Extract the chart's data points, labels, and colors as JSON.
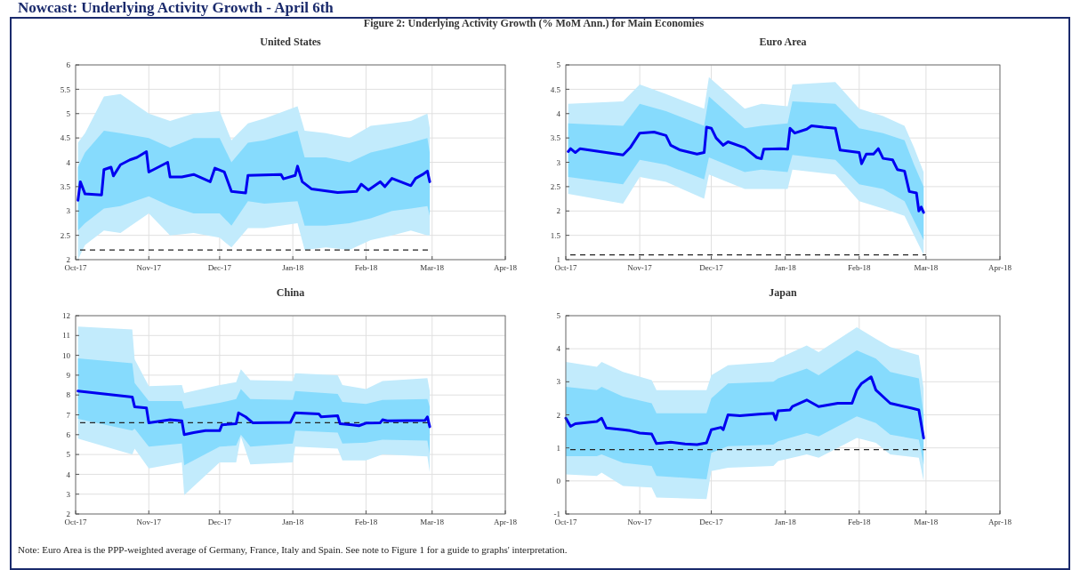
{
  "chart_data": [
    {
      "type": "other",
      "title": "Figure 2: Underlying Activity Growth (% MoM Ann.) for Main Economies",
      "annotations": [
        "Nowcast: Underlying Activity Growth - April 6th",
        "Note: Euro Area is the PPP-weighted average of Germany, France, Italy and Spain. See note to Figure 1 for a guide to graphs' interpretation."
      ]
    },
    {
      "type": "line",
      "title": "United States",
      "xlim": [
        "2017-10-01",
        "2018-04-01"
      ],
      "xticks": [
        {
          "value": "2017-10-01",
          "label": "Oct-17"
        },
        {
          "value": "2017-11-01",
          "label": "Nov-17"
        },
        {
          "value": "2017-12-01",
          "label": "Dec-17"
        },
        {
          "value": "2018-01-01",
          "label": "Jan-18"
        },
        {
          "value": "2018-02-01",
          "label": "Feb-18"
        },
        {
          "value": "2018-03-01",
          "label": "Mar-18"
        },
        {
          "value": "2018-04-01",
          "label": "Apr-18"
        }
      ],
      "ylim": [
        2,
        6
      ],
      "yticks": [
        2,
        2.5,
        3,
        3.5,
        4,
        4.5,
        5,
        5.5,
        6
      ],
      "grid": true,
      "ref_lines": [
        {
          "axis": "y",
          "value": 2.2,
          "color": "#222222",
          "line_style": "dashed"
        }
      ],
      "series": [
        {
          "type": "line",
          "color": "#c2ebfc",
          "x": [
            "2017-10-02",
            "2017-10-05",
            "2017-10-13",
            "2017-10-20",
            "2017-11-01",
            "2017-11-10",
            "2017-11-20",
            "2017-12-01",
            "2017-12-06",
            "2017-12-13",
            "2017-12-20",
            "2018-01-03",
            "2018-01-06",
            "2018-01-15",
            "2018-01-25",
            "2018-02-03",
            "2018-02-12",
            "2018-02-20",
            "2018-02-27",
            "2018-02-28"
          ],
          "values": [
            null,
            null,
            null,
            null,
            null,
            null,
            null,
            null,
            null,
            null,
            null,
            null,
            null,
            null,
            null,
            null,
            null,
            null,
            null,
            null
          ],
          "upper": [
            4.4,
            4.6,
            5.35,
            5.4,
            5.0,
            4.85,
            5.0,
            5.05,
            4.45,
            4.8,
            4.9,
            5.15,
            4.65,
            4.6,
            4.5,
            4.75,
            4.8,
            4.85,
            5.0,
            4.7
          ],
          "lower": [
            2.0,
            2.3,
            2.6,
            2.55,
            2.95,
            2.5,
            2.55,
            2.45,
            2.25,
            2.65,
            2.65,
            2.75,
            2.2,
            2.25,
            2.2,
            2.4,
            2.5,
            2.6,
            2.5,
            2.5
          ]
        },
        {
          "type": "line",
          "color": "#86dbfd",
          "x": [
            "2017-10-02",
            "2017-10-05",
            "2017-10-13",
            "2017-10-20",
            "2017-11-01",
            "2017-11-10",
            "2017-11-20",
            "2017-12-01",
            "2017-12-06",
            "2017-12-13",
            "2017-12-20",
            "2018-01-03",
            "2018-01-06",
            "2018-01-15",
            "2018-01-25",
            "2018-02-03",
            "2018-02-12",
            "2018-02-20",
            "2018-02-27",
            "2018-02-28"
          ],
          "values": [
            null,
            null,
            null,
            null,
            null,
            null,
            null,
            null,
            null,
            null,
            null,
            null,
            null,
            null,
            null,
            null,
            null,
            null,
            null,
            null
          ],
          "upper": [
            3.9,
            4.2,
            4.65,
            4.6,
            4.5,
            4.3,
            4.5,
            4.5,
            4.0,
            4.4,
            4.45,
            4.65,
            4.1,
            4.1,
            4.0,
            4.2,
            4.3,
            4.4,
            4.5,
            4.2
          ],
          "lower": [
            2.6,
            2.75,
            3.05,
            3.1,
            3.3,
            3.1,
            2.95,
            2.95,
            2.7,
            3.2,
            3.15,
            3.2,
            2.7,
            2.7,
            2.75,
            2.85,
            3.0,
            3.05,
            3.1,
            2.9
          ]
        },
        {
          "type": "line",
          "color": "#0000f0",
          "x": [
            "2017-10-02",
            "2017-10-03",
            "2017-10-05",
            "2017-10-12",
            "2017-10-13",
            "2017-10-16",
            "2017-10-17",
            "2017-10-20",
            "2017-10-24",
            "2017-10-27",
            "2017-10-31",
            "2017-11-01",
            "2017-11-03",
            "2017-11-09",
            "2017-11-10",
            "2017-11-15",
            "2017-11-20",
            "2017-11-27",
            "2017-11-29",
            "2017-12-03",
            "2017-12-06",
            "2017-12-12",
            "2017-12-13",
            "2017-12-27",
            "2017-12-28",
            "2018-01-02",
            "2018-01-03",
            "2018-01-05",
            "2018-01-09",
            "2018-01-20",
            "2018-01-28",
            "2018-01-30",
            "2018-02-02",
            "2018-02-07",
            "2018-02-09",
            "2018-02-12",
            "2018-02-20",
            "2018-02-22",
            "2018-02-25",
            "2018-02-27",
            "2018-02-28"
          ],
          "values": [
            3.22,
            3.6,
            3.35,
            3.33,
            3.85,
            3.9,
            3.72,
            3.95,
            4.05,
            4.1,
            4.22,
            3.8,
            3.85,
            4.0,
            3.7,
            3.7,
            3.75,
            3.6,
            3.88,
            3.8,
            3.4,
            3.37,
            3.73,
            3.75,
            3.66,
            3.73,
            3.92,
            3.6,
            3.45,
            3.38,
            3.4,
            3.55,
            3.43,
            3.6,
            3.5,
            3.67,
            3.52,
            3.67,
            3.75,
            3.82,
            3.6
          ]
        }
      ]
    },
    {
      "type": "line",
      "title": "Euro Area",
      "xlim": [
        "2017-10-01",
        "2018-04-01"
      ],
      "xticks": [
        {
          "value": "2017-10-01",
          "label": "Oct-17"
        },
        {
          "value": "2017-11-01",
          "label": "Nov-17"
        },
        {
          "value": "2017-12-01",
          "label": "Dec-17"
        },
        {
          "value": "2018-01-01",
          "label": "Jan-18"
        },
        {
          "value": "2018-02-01",
          "label": "Feb-18"
        },
        {
          "value": "2018-03-01",
          "label": "Mar-18"
        },
        {
          "value": "2018-04-01",
          "label": "Apr-18"
        }
      ],
      "ylim": [
        1,
        5
      ],
      "yticks": [
        1,
        1.5,
        2,
        2.5,
        3,
        3.5,
        4,
        4.5,
        5
      ],
      "grid": true,
      "ref_lines": [
        {
          "axis": "y",
          "value": 1.1,
          "color": "#222222",
          "line_style": "dashed"
        }
      ],
      "series": [
        {
          "type": "line",
          "color": "#c2ebfc",
          "x": [
            "2017-10-02",
            "2017-10-25",
            "2017-11-01",
            "2017-11-12",
            "2017-11-28",
            "2017-11-30",
            "2017-12-15",
            "2017-12-22",
            "2018-01-02",
            "2018-01-04",
            "2018-01-22",
            "2018-02-01",
            "2018-02-11",
            "2018-02-20",
            "2018-02-24",
            "2018-02-28"
          ],
          "values": [
            null,
            null,
            null,
            null,
            null,
            null,
            null,
            null,
            null,
            null,
            null,
            null,
            null,
            null,
            null,
            null
          ],
          "upper": [
            4.2,
            4.25,
            4.6,
            4.4,
            4.1,
            4.75,
            4.1,
            4.2,
            4.15,
            4.6,
            4.65,
            4.1,
            3.95,
            3.75,
            3.3,
            2.8
          ],
          "lower": [
            2.35,
            2.15,
            2.7,
            2.6,
            2.25,
            2.75,
            2.45,
            2.45,
            2.45,
            2.85,
            2.75,
            2.2,
            2.05,
            1.9,
            1.5,
            1.1
          ]
        },
        {
          "type": "line",
          "color": "#86dbfd",
          "x": [
            "2017-10-02",
            "2017-10-25",
            "2017-11-01",
            "2017-11-12",
            "2017-11-28",
            "2017-11-30",
            "2017-12-15",
            "2017-12-22",
            "2018-01-02",
            "2018-01-04",
            "2018-01-22",
            "2018-02-01",
            "2018-02-11",
            "2018-02-20",
            "2018-02-24",
            "2018-02-28"
          ],
          "values": [
            null,
            null,
            null,
            null,
            null,
            null,
            null,
            null,
            null,
            null,
            null,
            null,
            null,
            null,
            null,
            null
          ],
          "upper": [
            3.8,
            3.75,
            4.2,
            4.05,
            3.75,
            4.35,
            3.7,
            3.75,
            3.8,
            4.25,
            4.2,
            3.7,
            3.6,
            3.45,
            2.95,
            2.5
          ],
          "lower": [
            2.7,
            2.55,
            3.05,
            2.95,
            2.65,
            3.1,
            2.8,
            2.85,
            2.8,
            3.15,
            3.05,
            2.55,
            2.45,
            2.2,
            1.8,
            1.4
          ]
        },
        {
          "type": "line",
          "color": "#0000f0",
          "x": [
            "2017-10-02",
            "2017-10-03",
            "2017-10-05",
            "2017-10-07",
            "2017-10-25",
            "2017-10-28",
            "2017-11-01",
            "2017-11-07",
            "2017-11-12",
            "2017-11-14",
            "2017-11-18",
            "2017-11-25",
            "2017-11-28",
            "2017-11-29",
            "2017-12-01",
            "2017-12-03",
            "2017-12-06",
            "2017-12-08",
            "2017-12-15",
            "2017-12-20",
            "2017-12-22",
            "2017-12-23",
            "2017-12-30",
            "2018-01-02",
            "2018-01-03",
            "2018-01-05",
            "2018-01-10",
            "2018-01-12",
            "2018-01-17",
            "2018-01-22",
            "2018-01-24",
            "2018-02-01",
            "2018-02-02",
            "2018-02-04",
            "2018-02-07",
            "2018-02-09",
            "2018-02-11",
            "2018-02-15",
            "2018-02-17",
            "2018-02-20",
            "2018-02-22",
            "2018-02-25",
            "2018-02-26",
            "2018-02-27",
            "2018-02-28"
          ],
          "values": [
            3.22,
            3.28,
            3.2,
            3.28,
            3.15,
            3.3,
            3.6,
            3.62,
            3.55,
            3.35,
            3.25,
            3.17,
            3.2,
            3.72,
            3.7,
            3.5,
            3.35,
            3.42,
            3.3,
            3.1,
            3.07,
            3.27,
            3.28,
            3.27,
            3.7,
            3.6,
            3.68,
            3.75,
            3.72,
            3.7,
            3.25,
            3.2,
            2.97,
            3.17,
            3.17,
            3.28,
            3.08,
            3.05,
            2.85,
            2.82,
            2.4,
            2.37,
            2.0,
            2.08,
            1.97
          ]
        }
      ]
    },
    {
      "type": "line",
      "title": "China",
      "xlim": [
        "2017-10-01",
        "2018-04-01"
      ],
      "xticks": [
        {
          "value": "2017-10-01",
          "label": "Oct-17"
        },
        {
          "value": "2017-11-01",
          "label": "Nov-17"
        },
        {
          "value": "2017-12-01",
          "label": "Dec-17"
        },
        {
          "value": "2018-01-01",
          "label": "Jan-18"
        },
        {
          "value": "2018-02-01",
          "label": "Feb-18"
        },
        {
          "value": "2018-03-01",
          "label": "Mar-18"
        },
        {
          "value": "2018-04-01",
          "label": "Apr-18"
        }
      ],
      "ylim": [
        2,
        12
      ],
      "yticks": [
        2,
        3,
        4,
        5,
        6,
        7,
        8,
        9,
        10,
        11,
        12
      ],
      "grid": true,
      "ref_lines": [
        {
          "axis": "y",
          "value": 6.6,
          "color": "#222222",
          "line_style": "dashed"
        }
      ],
      "series": [
        {
          "type": "line",
          "color": "#c2ebfc",
          "x": [
            "2017-10-02",
            "2017-10-25",
            "2017-10-26",
            "2017-11-01",
            "2017-11-15",
            "2017-11-16",
            "2017-12-01",
            "2017-12-08",
            "2017-12-10",
            "2017-12-14",
            "2018-01-01",
            "2018-01-02",
            "2018-01-20",
            "2018-01-22",
            "2018-02-01",
            "2018-02-08",
            "2018-02-27",
            "2018-02-28"
          ],
          "values": [
            null,
            null,
            null,
            null,
            null,
            null,
            null,
            null,
            null,
            null,
            null,
            null,
            null,
            null,
            null,
            null,
            null,
            null
          ],
          "upper": [
            11.45,
            11.3,
            9.8,
            8.45,
            8.5,
            8.1,
            8.5,
            8.65,
            9.3,
            8.75,
            8.7,
            9.1,
            9.0,
            8.5,
            8.3,
            8.7,
            8.85,
            8.2
          ],
          "lower": [
            5.8,
            5.0,
            5.3,
            4.3,
            4.6,
            2.95,
            4.6,
            4.6,
            5.9,
            4.5,
            4.6,
            5.4,
            5.3,
            4.7,
            4.7,
            5.0,
            4.9,
            4.1
          ]
        },
        {
          "type": "line",
          "color": "#86dbfd",
          "x": [
            "2017-10-02",
            "2017-10-25",
            "2017-10-26",
            "2017-11-01",
            "2017-11-15",
            "2017-11-16",
            "2017-12-01",
            "2017-12-08",
            "2017-12-10",
            "2017-12-14",
            "2018-01-01",
            "2018-01-02",
            "2018-01-20",
            "2018-01-22",
            "2018-02-01",
            "2018-02-08",
            "2018-02-27",
            "2018-02-28"
          ],
          "values": [
            null,
            null,
            null,
            null,
            null,
            null,
            null,
            null,
            null,
            null,
            null,
            null,
            null,
            null,
            null,
            null,
            null,
            null
          ],
          "upper": [
            9.85,
            9.6,
            8.6,
            7.7,
            7.7,
            7.3,
            7.6,
            7.8,
            8.3,
            7.8,
            7.75,
            8.2,
            8.05,
            7.65,
            7.55,
            7.75,
            7.8,
            7.4
          ],
          "lower": [
            6.8,
            6.2,
            6.3,
            5.4,
            5.55,
            4.45,
            5.4,
            5.45,
            6.0,
            5.4,
            5.55,
            6.2,
            6.1,
            5.55,
            5.6,
            5.75,
            5.7,
            5.0
          ]
        },
        {
          "type": "line",
          "color": "#0000f0",
          "x": [
            "2017-10-02",
            "2017-10-25",
            "2017-10-26",
            "2017-10-31",
            "2017-11-01",
            "2017-11-10",
            "2017-11-15",
            "2017-11-16",
            "2017-11-20",
            "2017-11-25",
            "2017-12-01",
            "2017-12-02",
            "2017-12-08",
            "2017-12-09",
            "2017-12-12",
            "2017-12-15",
            "2017-12-31",
            "2018-01-02",
            "2018-01-12",
            "2018-01-13",
            "2018-01-20",
            "2018-01-21",
            "2018-01-26",
            "2018-01-29",
            "2018-02-01",
            "2018-02-07",
            "2018-02-08",
            "2018-02-10",
            "2018-02-26",
            "2018-02-27",
            "2018-02-28"
          ],
          "values": [
            8.2,
            7.9,
            7.4,
            7.35,
            6.6,
            6.75,
            6.7,
            6.0,
            6.1,
            6.2,
            6.2,
            6.5,
            6.55,
            7.1,
            6.9,
            6.6,
            6.62,
            7.1,
            7.05,
            6.9,
            6.95,
            6.55,
            6.5,
            6.45,
            6.58,
            6.6,
            6.75,
            6.7,
            6.72,
            6.9,
            6.4
          ]
        }
      ]
    },
    {
      "type": "line",
      "title": "Japan",
      "xlim": [
        "2017-10-01",
        "2018-04-01"
      ],
      "xticks": [
        {
          "value": "2017-10-01",
          "label": "Oct-17"
        },
        {
          "value": "2017-11-01",
          "label": "Nov-17"
        },
        {
          "value": "2017-12-01",
          "label": "Dec-17"
        },
        {
          "value": "2018-01-01",
          "label": "Jan-18"
        },
        {
          "value": "2018-02-01",
          "label": "Feb-18"
        },
        {
          "value": "2018-03-01",
          "label": "Mar-18"
        },
        {
          "value": "2018-04-01",
          "label": "Apr-18"
        }
      ],
      "ylim": [
        -1,
        5
      ],
      "yticks": [
        -1,
        0,
        1,
        2,
        3,
        4,
        5
      ],
      "grid": true,
      "ref_lines": [
        {
          "axis": "y",
          "value": 0.95,
          "color": "#222222",
          "line_style": "dashed"
        }
      ],
      "series": [
        {
          "type": "line",
          "color": "#c2ebfc",
          "x": [
            "2017-10-01",
            "2017-10-14",
            "2017-10-16",
            "2017-10-25",
            "2017-11-06",
            "2017-11-08",
            "2017-11-29",
            "2017-12-01",
            "2017-12-08",
            "2017-12-27",
            "2017-12-29",
            "2018-01-10",
            "2018-01-15",
            "2018-01-31",
            "2018-02-08",
            "2018-02-14",
            "2018-02-26",
            "2018-02-28"
          ],
          "values": [
            null,
            null,
            null,
            null,
            null,
            null,
            null,
            null,
            null,
            null,
            null,
            null,
            null,
            null,
            null,
            null,
            null,
            null
          ],
          "upper": [
            3.6,
            3.45,
            3.6,
            3.3,
            3.05,
            2.75,
            2.75,
            3.2,
            3.5,
            3.6,
            3.7,
            4.1,
            3.9,
            4.65,
            4.3,
            4.05,
            3.8,
            2.8
          ],
          "lower": [
            0.2,
            0.15,
            0.25,
            -0.15,
            -0.2,
            -0.5,
            -0.55,
            0.3,
            0.4,
            0.45,
            0.6,
            0.8,
            0.7,
            1.3,
            1.15,
            0.8,
            0.7,
            0.0
          ]
        },
        {
          "type": "line",
          "color": "#86dbfd",
          "x": [
            "2017-10-01",
            "2017-10-14",
            "2017-10-16",
            "2017-10-25",
            "2017-11-06",
            "2017-11-08",
            "2017-11-29",
            "2017-12-01",
            "2017-12-08",
            "2017-12-27",
            "2017-12-29",
            "2018-01-10",
            "2018-01-15",
            "2018-01-31",
            "2018-02-08",
            "2018-02-14",
            "2018-02-26",
            "2018-02-28"
          ],
          "values": [
            null,
            null,
            null,
            null,
            null,
            null,
            null,
            null,
            null,
            null,
            null,
            null,
            null,
            null,
            null,
            null,
            null,
            null
          ],
          "upper": [
            2.85,
            2.75,
            2.85,
            2.55,
            2.35,
            2.05,
            2.05,
            2.5,
            2.95,
            3.0,
            3.1,
            3.4,
            3.2,
            3.95,
            3.7,
            3.3,
            3.1,
            2.0
          ],
          "lower": [
            0.75,
            0.75,
            0.8,
            0.55,
            0.45,
            0.15,
            0.05,
            0.85,
            1.05,
            1.1,
            1.2,
            1.45,
            1.35,
            1.95,
            1.75,
            1.4,
            1.25,
            0.5
          ]
        },
        {
          "type": "line",
          "color": "#0000f0",
          "x": [
            "2017-10-01",
            "2017-10-03",
            "2017-10-05",
            "2017-10-14",
            "2017-10-16",
            "2017-10-18",
            "2017-10-25",
            "2017-10-28",
            "2017-11-01",
            "2017-11-06",
            "2017-11-08",
            "2017-11-14",
            "2017-11-20",
            "2017-11-25",
            "2017-11-29",
            "2017-12-01",
            "2017-12-05",
            "2017-12-06",
            "2017-12-08",
            "2017-12-13",
            "2017-12-21",
            "2017-12-27",
            "2017-12-28",
            "2017-12-29",
            "2018-01-03",
            "2018-01-04",
            "2018-01-10",
            "2018-01-15",
            "2018-01-23",
            "2018-01-29",
            "2018-01-31",
            "2018-02-02",
            "2018-02-06",
            "2018-02-08",
            "2018-02-14",
            "2018-02-23",
            "2018-02-26",
            "2018-02-28"
          ],
          "values": [
            1.9,
            1.65,
            1.73,
            1.8,
            1.9,
            1.6,
            1.55,
            1.52,
            1.45,
            1.42,
            1.13,
            1.17,
            1.12,
            1.1,
            1.15,
            1.55,
            1.62,
            1.55,
            2.0,
            1.97,
            2.02,
            2.05,
            1.85,
            2.12,
            2.15,
            2.25,
            2.45,
            2.25,
            2.35,
            2.35,
            2.75,
            2.95,
            3.15,
            2.75,
            2.35,
            2.2,
            2.15,
            1.3
          ]
        }
      ]
    }
  ]
}
